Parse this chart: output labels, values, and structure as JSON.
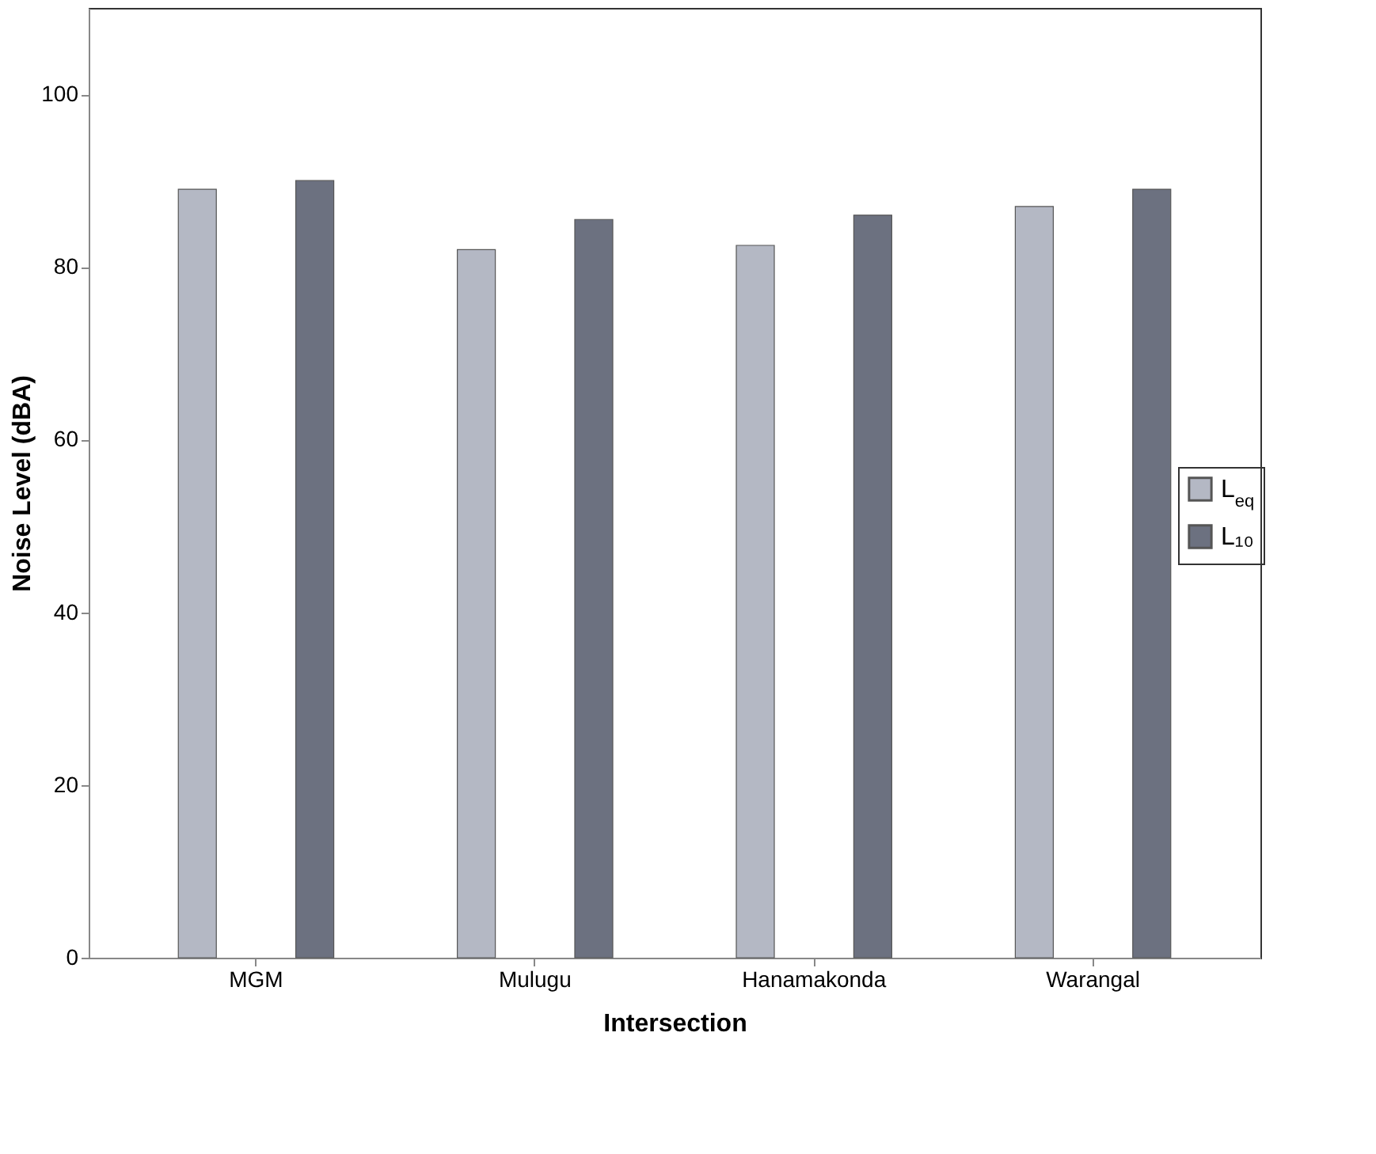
{
  "chart_data": {
    "type": "bar",
    "xlabel": "Intersection",
    "ylabel": "Noise Level (dBA)",
    "categories": [
      "MGM",
      "Mulugu",
      "Hanamakonda",
      "Warangal"
    ],
    "series": [
      {
        "name": "L$_{eq}$",
        "color": "#b4b8c4",
        "values": [
          89,
          82,
          82.5,
          87
        ]
      },
      {
        "name": "L₁₀",
        "color": "#6c7180",
        "values": [
          90,
          85.5,
          86,
          89
        ]
      }
    ],
    "ylim": [
      0,
      110
    ],
    "yticks": [
      0,
      20,
      40,
      60,
      80,
      100
    ],
    "grid": false,
    "legend": "right"
  }
}
